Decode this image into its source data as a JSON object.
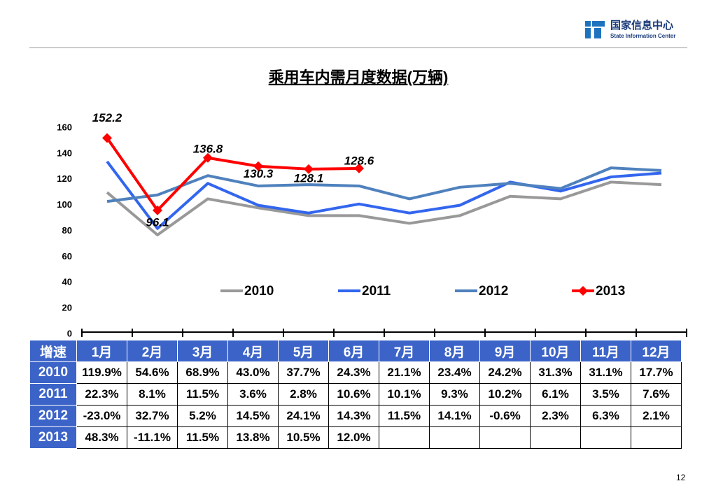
{
  "header": {
    "org_cn": "国家信息中心",
    "org_en": "State Information Center"
  },
  "chart_data": {
    "type": "line",
    "title": "乘用车内需月度数据(万辆)",
    "categories": [
      "1月",
      "2月",
      "3月",
      "4月",
      "5月",
      "6月",
      "7月",
      "8月",
      "9月",
      "10月",
      "11月",
      "12月"
    ],
    "ylim": [
      0,
      160
    ],
    "yticks": [
      0,
      20,
      40,
      60,
      80,
      100,
      120,
      140,
      160
    ],
    "series": [
      {
        "name": "2010",
        "color": "#999999",
        "values": [
          110,
          77,
          105,
          98,
          92,
          92,
          86,
          92,
          107,
          105,
          118,
          116
        ]
      },
      {
        "name": "2011",
        "color": "#3366ee",
        "values": [
          134,
          82,
          117,
          100,
          94,
          101,
          94,
          100,
          118,
          111,
          122,
          125
        ]
      },
      {
        "name": "2012",
        "color": "#4f81bd",
        "values": [
          103,
          108,
          123,
          115,
          116,
          115,
          105,
          114,
          117,
          113,
          129,
          127
        ]
      },
      {
        "name": "2013",
        "color": "#ff0000",
        "marker": "diamond",
        "values": [
          152.2,
          96.1,
          136.8,
          130.3,
          128.1,
          128.6,
          null,
          null,
          null,
          null,
          null,
          null
        ]
      }
    ]
  },
  "table": {
    "corner": "增速",
    "rows": [
      {
        "label": "2010",
        "cells": [
          "119.9%",
          "54.6%",
          "68.9%",
          "43.0%",
          "37.7%",
          "24.3%",
          "21.1%",
          "23.4%",
          "24.2%",
          "31.3%",
          "31.1%",
          "17.7%"
        ]
      },
      {
        "label": "2011",
        "cells": [
          "22.3%",
          "8.1%",
          "11.5%",
          "3.6%",
          "2.8%",
          "10.6%",
          "10.1%",
          "9.3%",
          "10.2%",
          "6.1%",
          "3.5%",
          "7.6%"
        ]
      },
      {
        "label": "2012",
        "cells": [
          "-23.0%",
          "32.7%",
          "5.2%",
          "14.5%",
          "24.1%",
          "14.3%",
          "11.5%",
          "14.1%",
          "-0.6%",
          "2.3%",
          "6.3%",
          "2.1%"
        ]
      },
      {
        "label": "2013",
        "cells": [
          "48.3%",
          "-11.1%",
          "11.5%",
          "13.8%",
          "10.5%",
          "12.0%"
        ]
      }
    ]
  },
  "page_number": "12"
}
